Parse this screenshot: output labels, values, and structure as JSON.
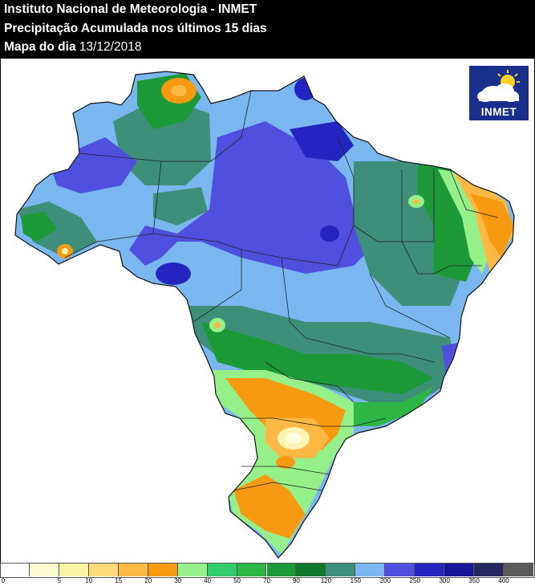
{
  "header": {
    "line1": "Instituto Nacional de Meteorologia - INMET",
    "line2": "Precipitação Acumulada nos últimos 15 dias",
    "line3_prefix": "Mapa do dia ",
    "line3_date": "13/12/2018"
  },
  "logo": {
    "text": "INMET",
    "icon": "cloud-sun-icon"
  },
  "legend": {
    "colors": [
      "#ffffff",
      "#fefbd2",
      "#fff3a6",
      "#fed97a",
      "#fbb943",
      "#f79a12",
      "#96f08a",
      "#30cc6c",
      "#2db545",
      "#1c9a38",
      "#0f7a2c",
      "#3e8f7a",
      "#7ab7f0",
      "#5050e0",
      "#2424c0",
      "#16169a",
      "#262660",
      "#5a5a5a"
    ],
    "labels": [
      "0",
      "5",
      "10",
      "15",
      "20",
      "30",
      "40",
      "50",
      "70",
      "90",
      "120",
      "150",
      "200",
      "250",
      "300",
      "350",
      "400"
    ],
    "unit": ""
  }
}
